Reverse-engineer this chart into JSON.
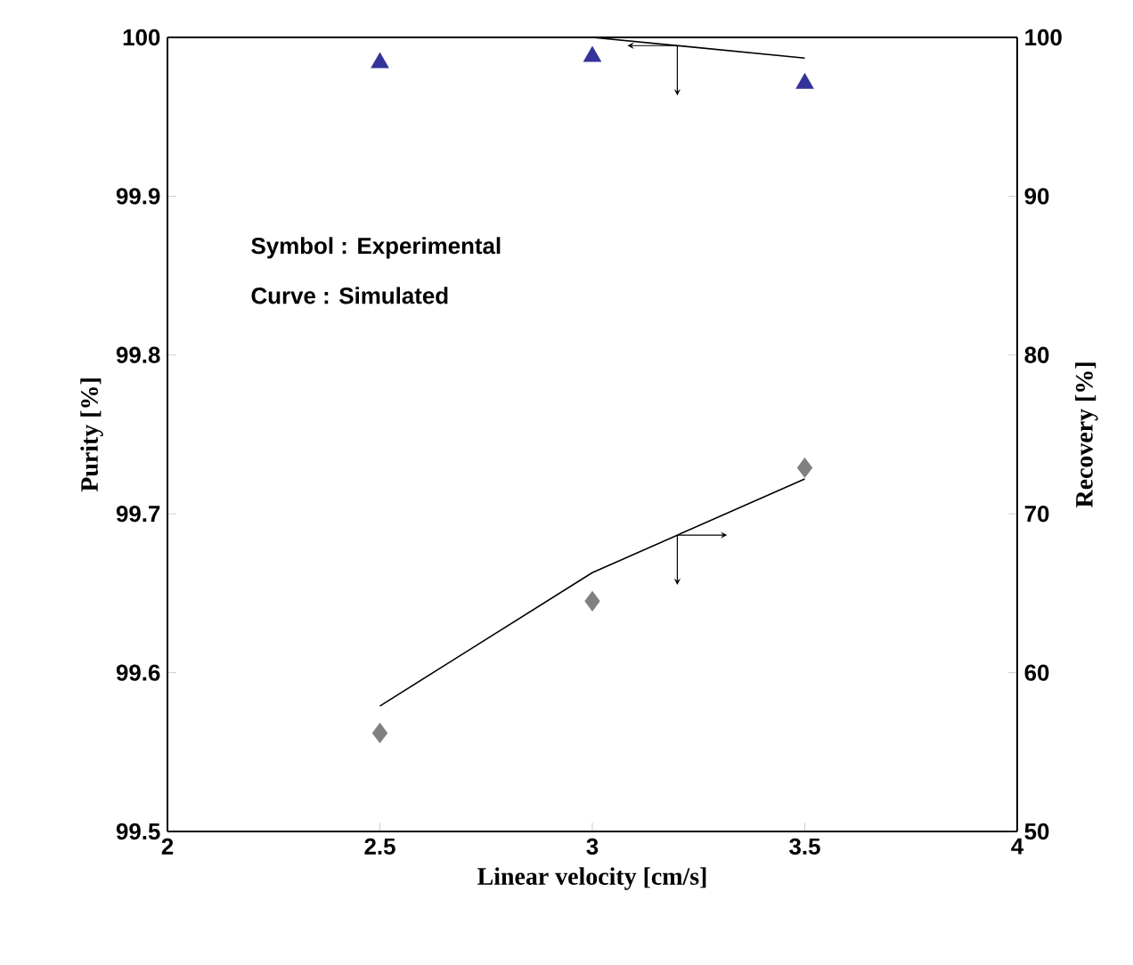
{
  "chart_data": {
    "type": "scatter",
    "xlabel": "Linear velocity [cm/s]",
    "ylabel": "Purity [%]",
    "y2label": "Recovery [%]",
    "x": [
      2.5,
      3,
      3.5
    ],
    "series": [
      {
        "marker": "triangle",
        "color": "#333399",
        "values": [
          99.984,
          99.988,
          99.971
        ]
      },
      {
        "type": "line",
        "marker": "none",
        "color": "#000000",
        "values": [
          null,
          100,
          99.987
        ]
      },
      {
        "marker": "diamond",
        "color": "#808080",
        "axis": "y2",
        "values": [
          56.2,
          64.5,
          72.9
        ]
      },
      {
        "type": "line",
        "marker": "none",
        "color": "#000000",
        "axis": "y2",
        "values": [
          57.9,
          66.3,
          72.2
        ]
      }
    ],
    "xlim": [
      2,
      4
    ],
    "xticks": [
      2,
      2.5,
      3,
      3.5,
      4
    ],
    "ylim": [
      99.5,
      100
    ],
    "yticks": [
      99.5,
      99.6,
      99.7,
      99.8,
      99.9,
      100
    ],
    "y2lim": [
      50,
      100
    ],
    "y2ticks": [
      50,
      60,
      70,
      80,
      90,
      100
    ],
    "annotations": [
      "Symbol : Experimental",
      "Curve : Simulated"
    ]
  }
}
